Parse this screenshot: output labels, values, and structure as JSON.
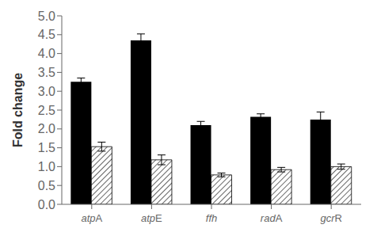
{
  "chart_data": {
    "type": "bar",
    "categories": [
      "atpA",
      "atpE",
      "ffh",
      "radA",
      "gcrR"
    ],
    "series": [
      {
        "color": "#000000",
        "values": [
          3.25,
          4.35,
          2.1,
          2.32,
          2.25
        ],
        "errors": [
          0.1,
          0.17,
          0.1,
          0.08,
          0.2
        ]
      },
      {
        "color": "#ffffff",
        "values": [
          1.53,
          1.18,
          0.78,
          0.92,
          1.0
        ],
        "errors": [
          0.12,
          0.13,
          0.05,
          0.06,
          0.07
        ]
      }
    ],
    "ylabel": "Fold change",
    "ylim": [
      0,
      5.0
    ],
    "yticks": [
      {
        "value": 0,
        "label": "0.0"
      },
      0.5,
      {
        "value": 1.0,
        "label": "1.0"
      },
      1.5,
      {
        "value": 2.0,
        "label": "2.0"
      },
      2.5,
      {
        "value": 3.0,
        "label": "3.0"
      },
      3.5,
      {
        "value": 4.0,
        "label": "4.0"
      },
      4.5,
      {
        "value": 5.0,
        "label": "5.0"
      }
    ],
    "grid": false
  }
}
